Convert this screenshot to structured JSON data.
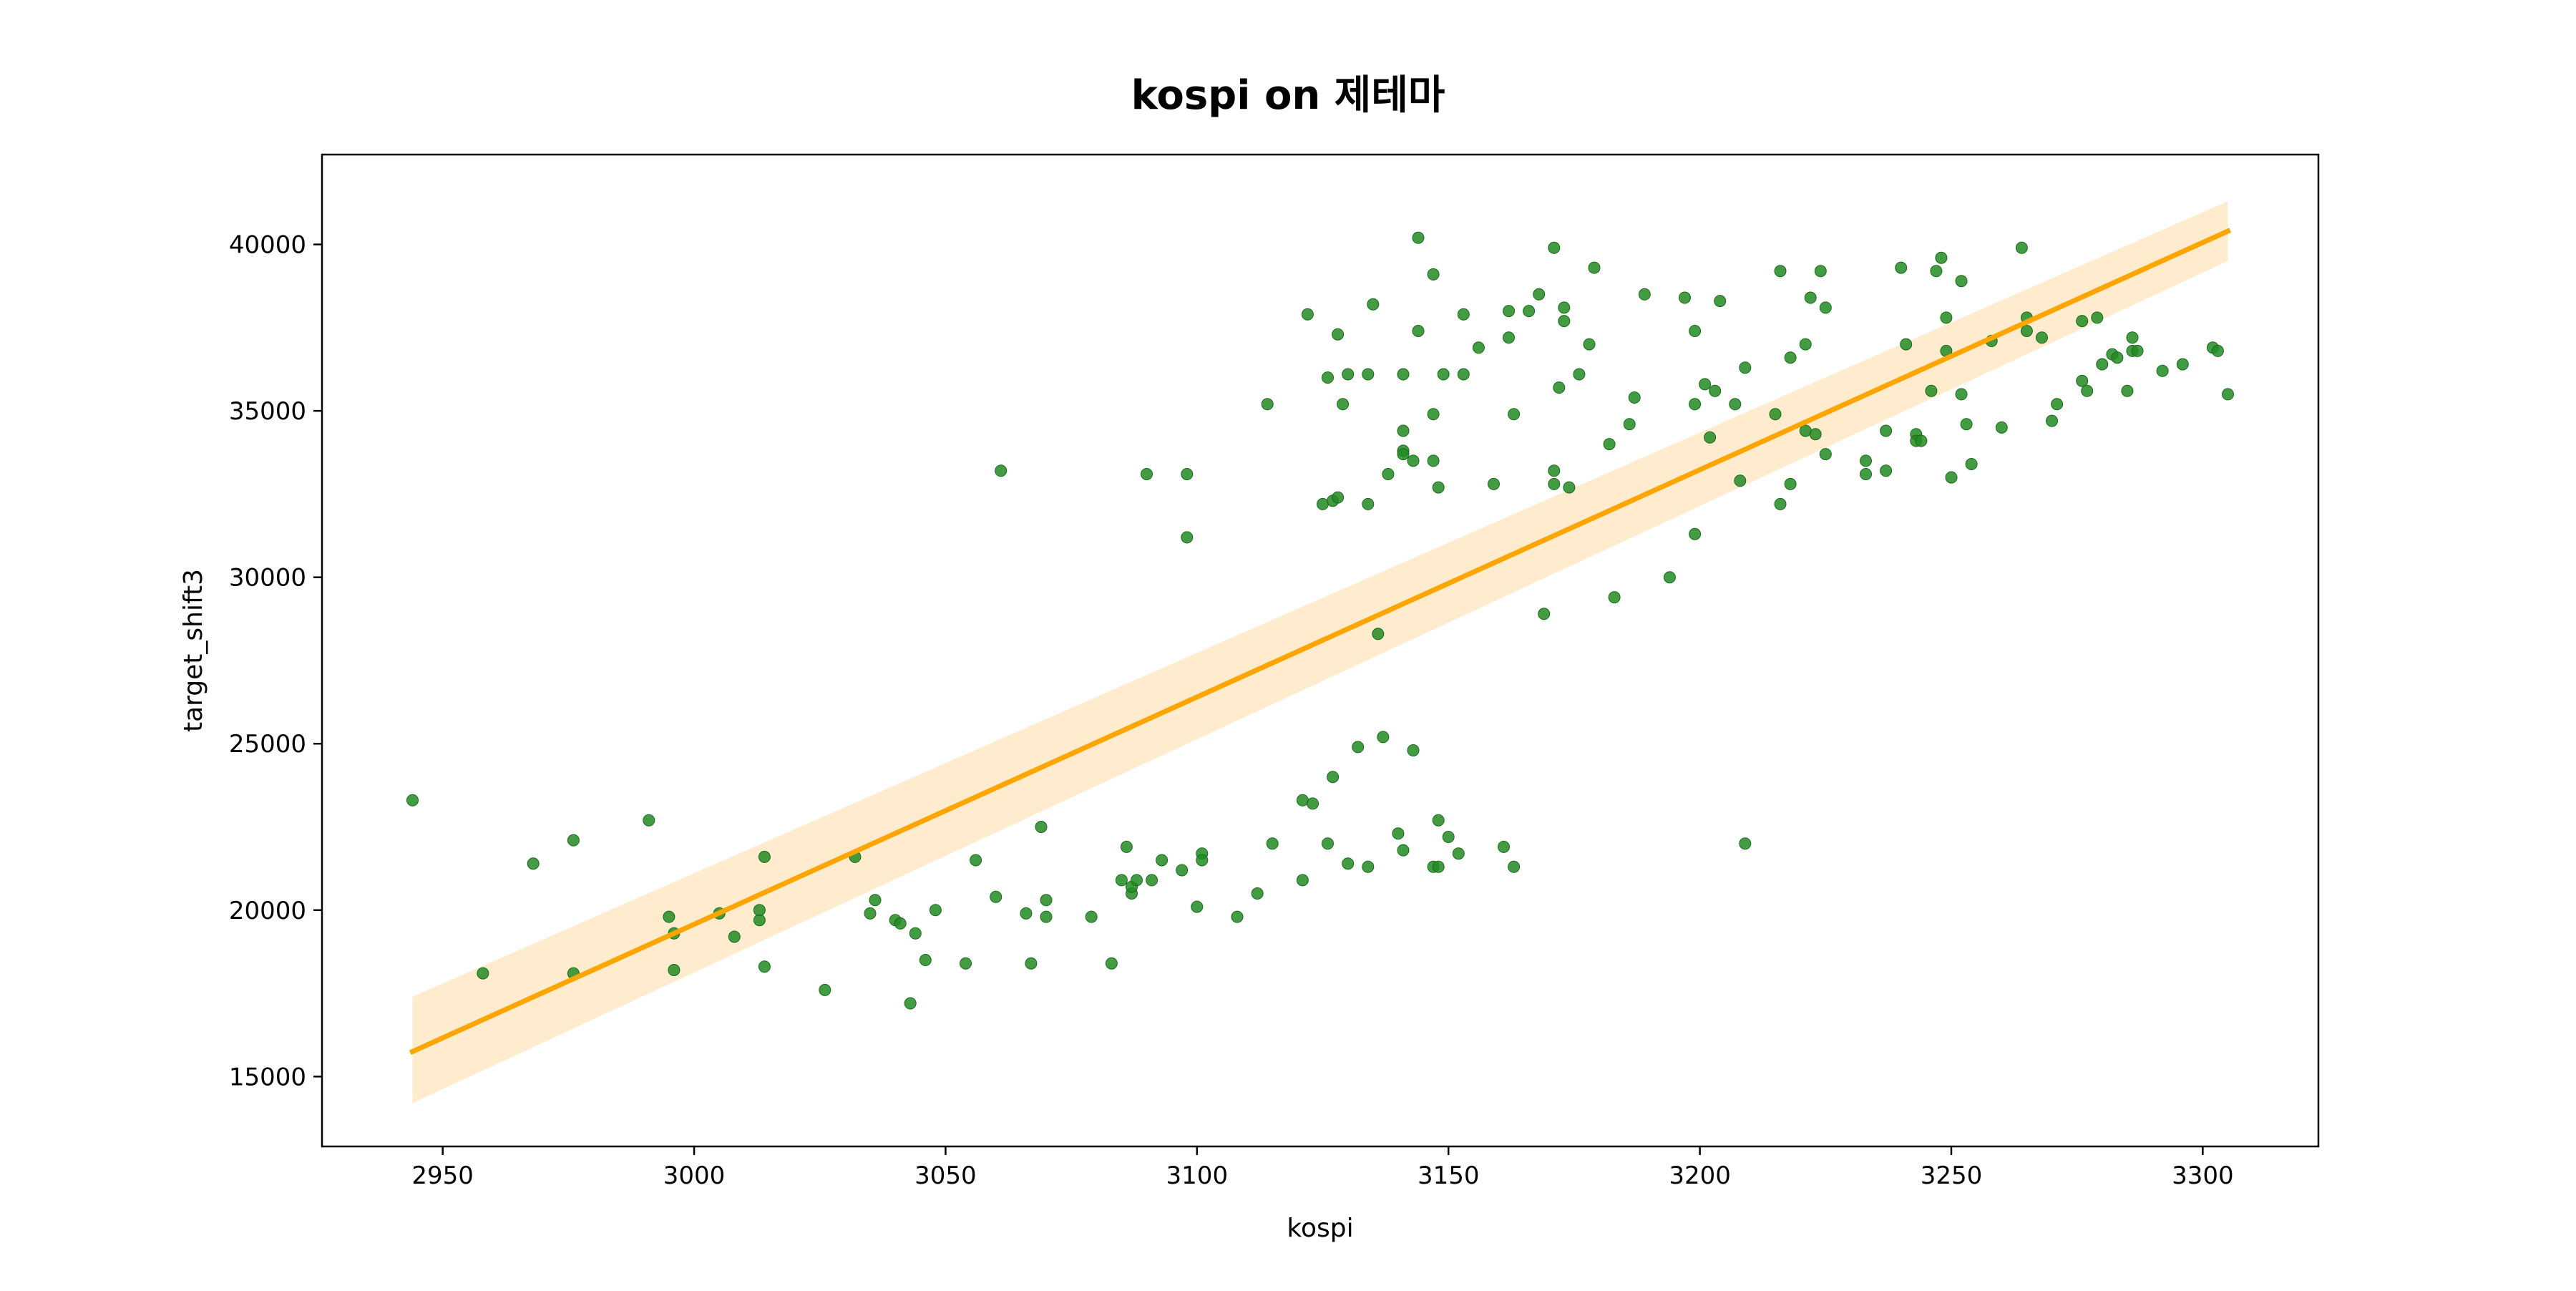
{
  "chart_data": {
    "type": "scatter",
    "title": "kospi on 제테마",
    "xlabel": "kospi",
    "ylabel": "target_shift3",
    "xlim": [
      2926,
      3323
    ],
    "ylim": [
      12900,
      42700
    ],
    "xticks": [
      2950,
      3000,
      3050,
      3100,
      3150,
      3200,
      3250,
      3300
    ],
    "yticks": [
      15000,
      20000,
      25000,
      30000,
      35000,
      40000
    ],
    "xtick_labels": [
      "2950",
      "3000",
      "3050",
      "3100",
      "3150",
      "3200",
      "3250",
      "3300"
    ],
    "ytick_labels": [
      "15000",
      "20000",
      "25000",
      "30000",
      "35000",
      "40000"
    ],
    "grid": false,
    "colors": {
      "points": "#228B22",
      "fit_line": "#FFA500",
      "confidence_band": "#FFE9C7"
    },
    "regression": {
      "x": [
        2944,
        3305
      ],
      "y": [
        15750,
        40400
      ],
      "ci_lower": [
        14200,
        39500
      ],
      "ci_upper": [
        17400,
        41300
      ]
    },
    "points": [
      [
        2944,
        23300
      ],
      [
        2958,
        18100
      ],
      [
        2968,
        21400
      ],
      [
        2976,
        22100
      ],
      [
        2976,
        18100
      ],
      [
        2991,
        22700
      ],
      [
        2995,
        19800
      ],
      [
        2996,
        19300
      ],
      [
        2996,
        18200
      ],
      [
        3005,
        19900
      ],
      [
        3008,
        19200
      ],
      [
        3013,
        19700
      ],
      [
        3013,
        20000
      ],
      [
        3014,
        18300
      ],
      [
        3014,
        21600
      ],
      [
        3026,
        17600
      ],
      [
        3032,
        21600
      ],
      [
        3035,
        19900
      ],
      [
        3036,
        20300
      ],
      [
        3040,
        19700
      ],
      [
        3041,
        19600
      ],
      [
        3043,
        17200
      ],
      [
        3044,
        19300
      ],
      [
        3046,
        18500
      ],
      [
        3048,
        20000
      ],
      [
        3054,
        18400
      ],
      [
        3056,
        21500
      ],
      [
        3060,
        20400
      ],
      [
        3061,
        33200
      ],
      [
        3066,
        19900
      ],
      [
        3067,
        18400
      ],
      [
        3069,
        22500
      ],
      [
        3070,
        20300
      ],
      [
        3070,
        19800
      ],
      [
        3079,
        19800
      ],
      [
        3083,
        18400
      ],
      [
        3085,
        20900
      ],
      [
        3086,
        21900
      ],
      [
        3087,
        20500
      ],
      [
        3087,
        20700
      ],
      [
        3088,
        20900
      ],
      [
        3090,
        33100
      ],
      [
        3091,
        20900
      ],
      [
        3093,
        21500
      ],
      [
        3097,
        21200
      ],
      [
        3098,
        33100
      ],
      [
        3098,
        31200
      ],
      [
        3100,
        20100
      ],
      [
        3101,
        21700
      ],
      [
        3101,
        21500
      ],
      [
        3108,
        19800
      ],
      [
        3112,
        20500
      ],
      [
        3114,
        35200
      ],
      [
        3115,
        22000
      ],
      [
        3121,
        23300
      ],
      [
        3121,
        20900
      ],
      [
        3122,
        37900
      ],
      [
        3123,
        23200
      ],
      [
        3125,
        32200
      ],
      [
        3126,
        36000
      ],
      [
        3126,
        22000
      ],
      [
        3127,
        24000
      ],
      [
        3127,
        32300
      ],
      [
        3128,
        32400
      ],
      [
        3128,
        37300
      ],
      [
        3129,
        35200
      ],
      [
        3130,
        21400
      ],
      [
        3130,
        36100
      ],
      [
        3132,
        24900
      ],
      [
        3134,
        36100
      ],
      [
        3134,
        21300
      ],
      [
        3134,
        32200
      ],
      [
        3135,
        38200
      ],
      [
        3136,
        28300
      ],
      [
        3137,
        25200
      ],
      [
        3138,
        33100
      ],
      [
        3140,
        22300
      ],
      [
        3141,
        33800
      ],
      [
        3141,
        33700
      ],
      [
        3141,
        21800
      ],
      [
        3141,
        34400
      ],
      [
        3141,
        36100
      ],
      [
        3143,
        33500
      ],
      [
        3143,
        24800
      ],
      [
        3144,
        40200
      ],
      [
        3144,
        37400
      ],
      [
        3147,
        21300
      ],
      [
        3147,
        33500
      ],
      [
        3147,
        34900
      ],
      [
        3147,
        39100
      ],
      [
        3148,
        21300
      ],
      [
        3148,
        22700
      ],
      [
        3148,
        32700
      ],
      [
        3149,
        36100
      ],
      [
        3150,
        22200
      ],
      [
        3152,
        21700
      ],
      [
        3153,
        36100
      ],
      [
        3153,
        37900
      ],
      [
        3156,
        36900
      ],
      [
        3159,
        32800
      ],
      [
        3161,
        21900
      ],
      [
        3162,
        38000
      ],
      [
        3162,
        37200
      ],
      [
        3163,
        34900
      ],
      [
        3163,
        21300
      ],
      [
        3166,
        38000
      ],
      [
        3168,
        38500
      ],
      [
        3169,
        28900
      ],
      [
        3171,
        39900
      ],
      [
        3171,
        33200
      ],
      [
        3171,
        32800
      ],
      [
        3172,
        35700
      ],
      [
        3173,
        37700
      ],
      [
        3173,
        38100
      ],
      [
        3174,
        32700
      ],
      [
        3176,
        36100
      ],
      [
        3178,
        37000
      ],
      [
        3179,
        39300
      ],
      [
        3182,
        34000
      ],
      [
        3183,
        29400
      ],
      [
        3186,
        34600
      ],
      [
        3187,
        35400
      ],
      [
        3189,
        38500
      ],
      [
        3194,
        30000
      ],
      [
        3197,
        38400
      ],
      [
        3199,
        37400
      ],
      [
        3199,
        35200
      ],
      [
        3199,
        31300
      ],
      [
        3201,
        35800
      ],
      [
        3202,
        34200
      ],
      [
        3203,
        35600
      ],
      [
        3204,
        38300
      ],
      [
        3207,
        35200
      ],
      [
        3208,
        32900
      ],
      [
        3209,
        36300
      ],
      [
        3209,
        22000
      ],
      [
        3215,
        34900
      ],
      [
        3216,
        39200
      ],
      [
        3216,
        32200
      ],
      [
        3218,
        36600
      ],
      [
        3218,
        32800
      ],
      [
        3221,
        37000
      ],
      [
        3221,
        34400
      ],
      [
        3222,
        38400
      ],
      [
        3223,
        34300
      ],
      [
        3224,
        39200
      ],
      [
        3225,
        38100
      ],
      [
        3225,
        33700
      ],
      [
        3233,
        33500
      ],
      [
        3233,
        33100
      ],
      [
        3237,
        33200
      ],
      [
        3237,
        34400
      ],
      [
        3240,
        39300
      ],
      [
        3241,
        37000
      ],
      [
        3243,
        34300
      ],
      [
        3243,
        34100
      ],
      [
        3244,
        34100
      ],
      [
        3246,
        35600
      ],
      [
        3247,
        39200
      ],
      [
        3248,
        39600
      ],
      [
        3249,
        37800
      ],
      [
        3249,
        36800
      ],
      [
        3250,
        33000
      ],
      [
        3252,
        38900
      ],
      [
        3252,
        35500
      ],
      [
        3253,
        34600
      ],
      [
        3254,
        33400
      ],
      [
        3258,
        37100
      ],
      [
        3260,
        34500
      ],
      [
        3264,
        39900
      ],
      [
        3265,
        37800
      ],
      [
        3265,
        37400
      ],
      [
        3268,
        37200
      ],
      [
        3270,
        34700
      ],
      [
        3271,
        35200
      ],
      [
        3276,
        37700
      ],
      [
        3276,
        35900
      ],
      [
        3277,
        35600
      ],
      [
        3279,
        37800
      ],
      [
        3280,
        36400
      ],
      [
        3282,
        36700
      ],
      [
        3283,
        36600
      ],
      [
        3285,
        35600
      ],
      [
        3286,
        37200
      ],
      [
        3286,
        36800
      ],
      [
        3287,
        36800
      ],
      [
        3292,
        36200
      ],
      [
        3296,
        36400
      ],
      [
        3302,
        36900
      ],
      [
        3303,
        36800
      ],
      [
        3305,
        35500
      ]
    ]
  }
}
